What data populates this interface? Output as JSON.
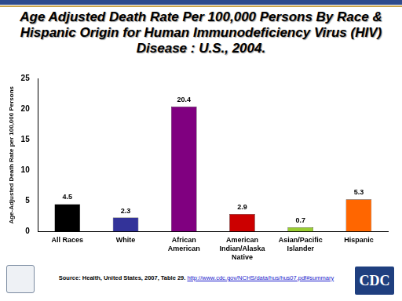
{
  "chart_data": {
    "type": "bar",
    "title": "Age Adjusted Death Rate Per 100,000 Persons By Race & Hispanic Origin for Human Immunodeficiency Virus (HIV) Disease : U.S.,  2004.",
    "y_label": "Age-Adjusted Death Rate per 100,000 Persons",
    "categories": [
      "All Races",
      "White",
      "African American",
      "American Indian/Alaska Native",
      "Asian/Pacific Islander",
      "Hispanic"
    ],
    "values": [
      4.5,
      2.3,
      20.4,
      2.9,
      0.7,
      5.3
    ],
    "colors": [
      "#000000",
      "#333399",
      "#800080",
      "#cc0000",
      "#99cc33",
      "#ff6600"
    ],
    "ylim": [
      0,
      25
    ],
    "yticks": [
      0,
      5,
      10,
      15,
      20,
      25
    ],
    "grid": false,
    "data_labels": true
  },
  "source": "Source: Health, United States, 2007, Table 29.",
  "source_link": "http://www.cdc.gov/NCHS/data/hus/hus07.pdf#summary",
  "logo": "CDC"
}
